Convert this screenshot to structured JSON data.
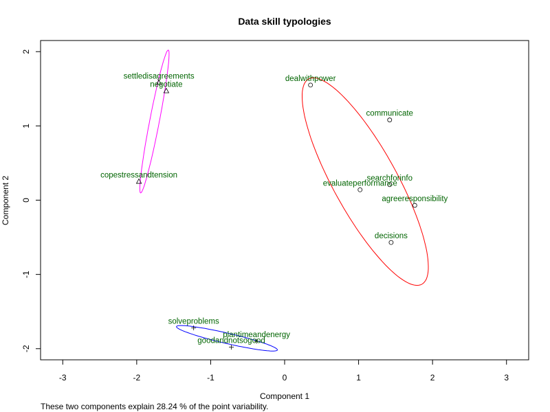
{
  "chart_data": {
    "type": "scatter",
    "title": "Data skill typologies",
    "xlabel": "Component 1",
    "ylabel": "Component 2",
    "xlim": [
      -3.3,
      3.3
    ],
    "ylim": [
      -2.15,
      2.15
    ],
    "x_ticks": [
      -3,
      -2,
      -1,
      0,
      1,
      2,
      3
    ],
    "y_ticks": [
      -2,
      -1,
      0,
      1,
      2
    ],
    "x_tick_labels": [
      "-3",
      "-2",
      "-1",
      "0",
      "1",
      "2",
      "3"
    ],
    "y_tick_labels": [
      "-2",
      "-1",
      "0",
      "1",
      "2"
    ],
    "grid": false,
    "footnote": "These two components explain 28.24 % of the point variability.",
    "colors": {
      "label_text": "#006400",
      "cluster_1": "#ff0000",
      "cluster_2": "#0000ff",
      "cluster_3": "#ff00ff",
      "axis": "#000000"
    },
    "clusters": [
      {
        "id": 1,
        "marker": "circle",
        "color_key": "cluster_1",
        "points": [
          {
            "label": "dealwithpower",
            "x": 0.35,
            "y": 1.55
          },
          {
            "label": "communicate",
            "x": 1.42,
            "y": 1.08
          },
          {
            "label": "searchforinfo",
            "x": 1.42,
            "y": 0.21
          },
          {
            "label": "evaluateperformance",
            "x": 1.02,
            "y": 0.14
          },
          {
            "label": "agreeresponsibility",
            "x": 1.76,
            "y": -0.07
          },
          {
            "label": "decisions",
            "x": 1.44,
            "y": -0.57
          }
        ],
        "ellipse": {
          "cx": 1.09,
          "cy": 0.25,
          "rx": 1.58,
          "ry": 0.43,
          "angle_deg": -61
        }
      },
      {
        "id": 2,
        "marker": "plus",
        "color_key": "cluster_2",
        "points": [
          {
            "label": "solveproblems",
            "x": -1.23,
            "y": -1.72
          },
          {
            "label": "plantimeandenergy",
            "x": -0.38,
            "y": -1.9
          },
          {
            "label": "goodandnotsogood",
            "x": -0.72,
            "y": -1.98
          }
        ],
        "ellipse": {
          "cx": -0.78,
          "cy": -1.86,
          "rx": 0.7,
          "ry": 0.07,
          "angle_deg": -13
        }
      },
      {
        "id": 3,
        "marker": "triangle",
        "color_key": "cluster_3",
        "points": [
          {
            "label": "settledisagreements",
            "x": -1.7,
            "y": 1.58
          },
          {
            "label": "negotiate",
            "x": -1.6,
            "y": 1.47
          },
          {
            "label": "copestressandtension",
            "x": -1.97,
            "y": 0.25
          }
        ],
        "ellipse": {
          "cx": -1.76,
          "cy": 1.06,
          "rx": 0.98,
          "ry": 0.065,
          "angle_deg": 79
        }
      }
    ]
  }
}
